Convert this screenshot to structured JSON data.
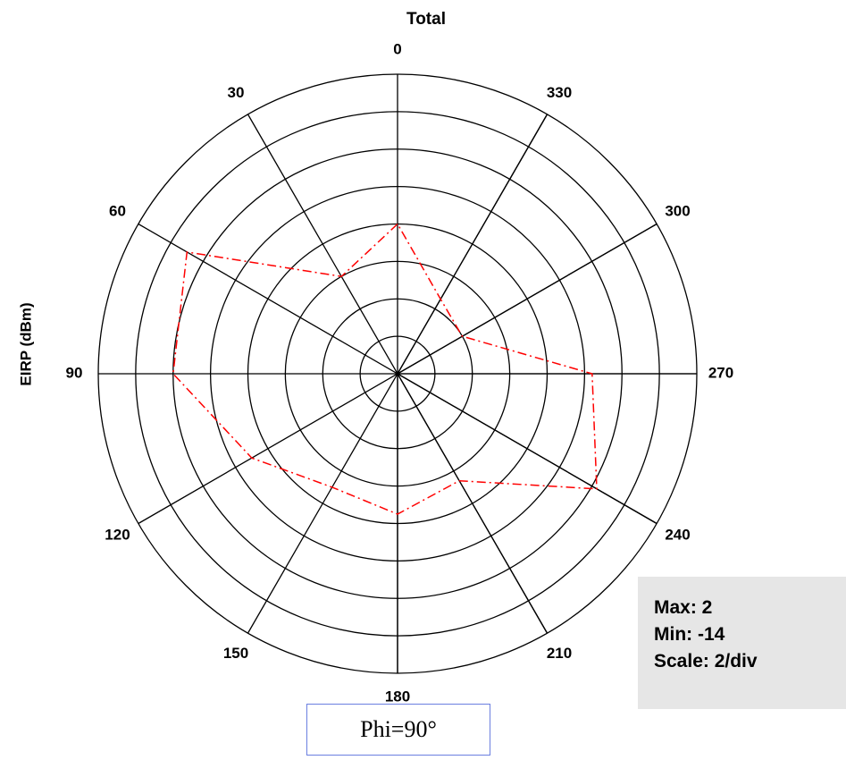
{
  "chart_data": {
    "type": "polar",
    "title": "Total",
    "axis_label": "EIRP  (dBm)",
    "subtitle": "Phi=90°",
    "annotations": [
      "Max: 2",
      "Min: -14",
      "Scale: 2/div"
    ],
    "angles": [
      0,
      30,
      60,
      90,
      120,
      150,
      180,
      210,
      240,
      270,
      300,
      330
    ],
    "values": [
      -6,
      -8,
      -1,
      -2,
      -5,
      -7,
      -6.5,
      -7.4,
      -1.7,
      -3.6,
      -10,
      -9.4
    ],
    "color": "#ff0000",
    "direction": "counterclockwise",
    "zero": "top",
    "rlim": [
      -14,
      2
    ],
    "rticks": [
      -12,
      -10,
      -8,
      -6,
      -4,
      -2,
      0,
      2
    ]
  }
}
